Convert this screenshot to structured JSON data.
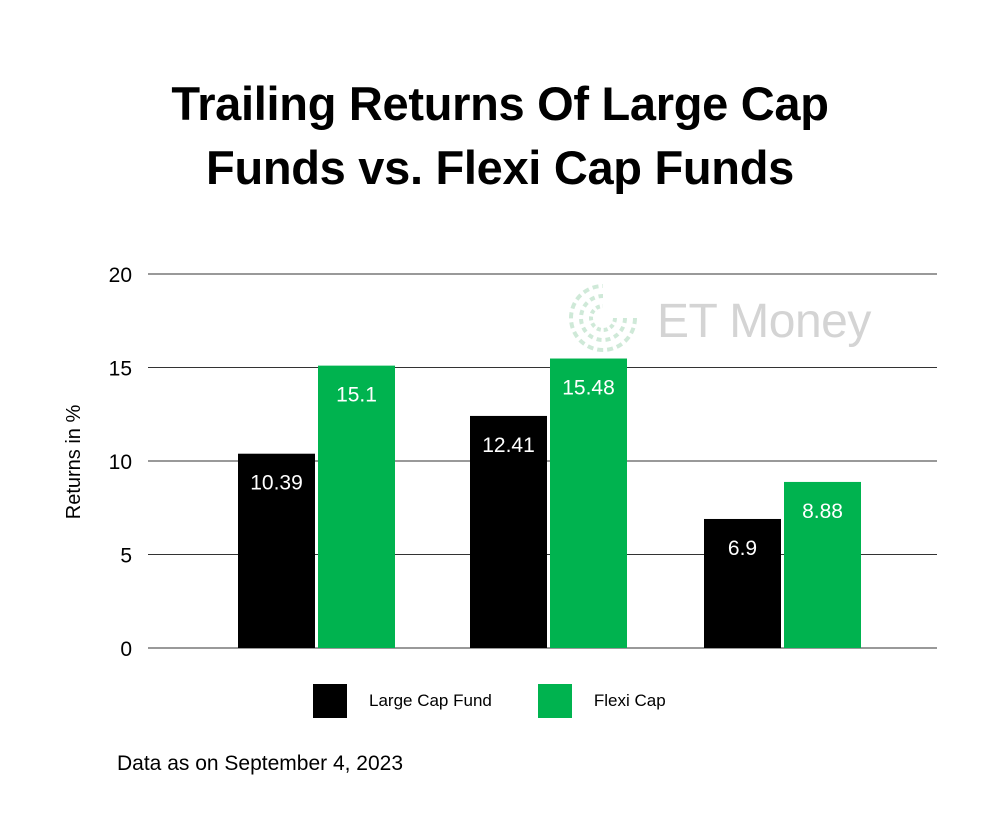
{
  "chart_data": {
    "type": "bar",
    "title_lines": [
      "Trailing Returns Of Large Cap",
      "Funds vs. Flexi Cap Funds"
    ],
    "categories": [
      "",
      "",
      ""
    ],
    "series": [
      {
        "name": "Large Cap Fund",
        "values": [
          10.39,
          12.41,
          6.9
        ],
        "color": "#000000",
        "labels": [
          "10.39",
          "12.41",
          "6.9"
        ]
      },
      {
        "name": "Flexi Cap",
        "values": [
          15.1,
          15.48,
          8.88
        ],
        "color": "#00b34f",
        "labels": [
          "15.1",
          "15.48",
          "8.88"
        ]
      }
    ],
    "ylabel": "Returns in %",
    "ylim": [
      0,
      20
    ],
    "yticks": [
      0,
      5,
      10,
      15,
      20
    ],
    "grid": true,
    "legend_position": "bottom"
  },
  "watermark": {
    "text": "ET Money",
    "color": "#d4d4d4",
    "icon": "et-money-logo-icon"
  },
  "footnote": "Data as on September 4, 2023"
}
